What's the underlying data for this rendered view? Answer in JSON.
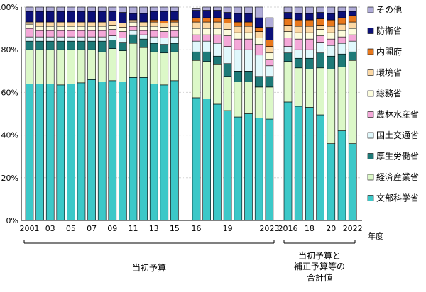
{
  "chart_data": {
    "type": "bar",
    "stacked": true,
    "y_axis": {
      "ylim": [
        0,
        100
      ],
      "tick_labels": [
        "0%",
        "20%",
        "40%",
        "60%",
        "80%",
        "100%"
      ]
    },
    "x_axis": {
      "unit_label": "年度",
      "tick_labels": [
        {
          "label": "2001",
          "index": 0
        },
        {
          "label": "03",
          "index": 2
        },
        {
          "label": "05",
          "index": 4
        },
        {
          "label": "07",
          "index": 6
        },
        {
          "label": "09",
          "index": 8
        },
        {
          "label": "11",
          "index": 10
        },
        {
          "label": "13",
          "index": 12
        },
        {
          "label": "15",
          "index": 14
        },
        {
          "label": "16",
          "index": 15
        },
        {
          "label": "19",
          "index": 18
        },
        {
          "label": "2023",
          "index": 22
        },
        {
          "label": "2016",
          "index": 23
        },
        {
          "label": "18",
          "index": 25
        },
        {
          "label": "20",
          "index": 27
        },
        {
          "label": "2022",
          "index": 29
        }
      ]
    },
    "groups": [
      {
        "label": "当初予算",
        "start": 0,
        "end": 22
      },
      {
        "label": "当初予算と\n補正予算等の\n合計値",
        "start": 23,
        "end": 29
      }
    ],
    "series": [
      {
        "name": "文部科学省",
        "color": "#3cc8c8"
      },
      {
        "name": "経済産業省",
        "color": "#dcf8c8"
      },
      {
        "name": "厚生労働省",
        "color": "#1e7a78"
      },
      {
        "name": "国土交通省",
        "color": "#e0f8fc"
      },
      {
        "name": "農林水産省",
        "color": "#f4a8d8"
      },
      {
        "name": "総務省",
        "color": "#fcfcdc"
      },
      {
        "name": "環境省",
        "color": "#fcd8a4"
      },
      {
        "name": "内閣府",
        "color": "#e8781c"
      },
      {
        "name": "防衛省",
        "color": "#0c1078"
      },
      {
        "name": "その他",
        "color": "#b0acd8"
      }
    ],
    "bars": [
      [
        64,
        16,
        4,
        2,
        4,
        2,
        1,
        0,
        5,
        2
      ],
      [
        64,
        16,
        4,
        2,
        3,
        2,
        2,
        0,
        5,
        2
      ],
      [
        64,
        16,
        4,
        2,
        3,
        2,
        2,
        0,
        5,
        2
      ],
      [
        63.5,
        16.5,
        4,
        2,
        3,
        2,
        2,
        0,
        5,
        2
      ],
      [
        64,
        16,
        4,
        2,
        3,
        2,
        2,
        0,
        5,
        2
      ],
      [
        64.5,
        15.5,
        4,
        2,
        3,
        2,
        2,
        0,
        5,
        2
      ],
      [
        66,
        14,
        4,
        2,
        3,
        2,
        2,
        0,
        5,
        2
      ],
      [
        65,
        14,
        5,
        2,
        3,
        2,
        2,
        0,
        5,
        2
      ],
      [
        65.5,
        15,
        4,
        2,
        3,
        2,
        2,
        0,
        4.5,
        2
      ],
      [
        65,
        14.5,
        4,
        2,
        3,
        2,
        2,
        0,
        5,
        2.5
      ],
      [
        67,
        16,
        4,
        2,
        2,
        2,
        1,
        0,
        3,
        3
      ],
      [
        67,
        14,
        4,
        2,
        2,
        2,
        2,
        0,
        4,
        3
      ],
      [
        64,
        15,
        4,
        3,
        3,
        2,
        2,
        1,
        4,
        2
      ],
      [
        63.5,
        15,
        4,
        3,
        3,
        2,
        2,
        1,
        4.5,
        2
      ],
      [
        65.5,
        13.5,
        4,
        3,
        3,
        2,
        2,
        1,
        4,
        2
      ],
      [
        57.5,
        17.5,
        4,
        5,
        3,
        3,
        3,
        2,
        3.5,
        1
      ],
      [
        57,
        17.5,
        4.5,
        5,
        3,
        3,
        3,
        2,
        3.5,
        1.5
      ],
      [
        54.5,
        18.5,
        4,
        6,
        4,
        3,
        3,
        2,
        3.5,
        1.5
      ],
      [
        51.5,
        16,
        6,
        8,
        5,
        3,
        3,
        2,
        3,
        2.5
      ],
      [
        48.5,
        16.5,
        5,
        10,
        5,
        3,
        3,
        2,
        4,
        3
      ],
      [
        50,
        15,
        5,
        10,
        5,
        3,
        3,
        2,
        4,
        3
      ],
      [
        48,
        14.5,
        5,
        10,
        5,
        3,
        3,
        2,
        4.5,
        5
      ],
      [
        47.5,
        15,
        5,
        5,
        3,
        3,
        3,
        3,
        6,
        4.5
      ],
      [
        55.5,
        19,
        4,
        3,
        4,
        3,
        3,
        3,
        3,
        2.5
      ],
      [
        53.5,
        18,
        4.5,
        4,
        5,
        3,
        3,
        3,
        3,
        3
      ],
      [
        53,
        18,
        5,
        4,
        5,
        3,
        3,
        3,
        3,
        3
      ],
      [
        49.5,
        22,
        7,
        5,
        3,
        3,
        2,
        3,
        3,
        2.5
      ],
      [
        36,
        35,
        6,
        5,
        3,
        3,
        3,
        3,
        3,
        3
      ],
      [
        42,
        30,
        6,
        5,
        3,
        3,
        3,
        3,
        3,
        2
      ],
      [
        36,
        39,
        4,
        5,
        3,
        3,
        3,
        3,
        2,
        2
      ]
    ]
  }
}
